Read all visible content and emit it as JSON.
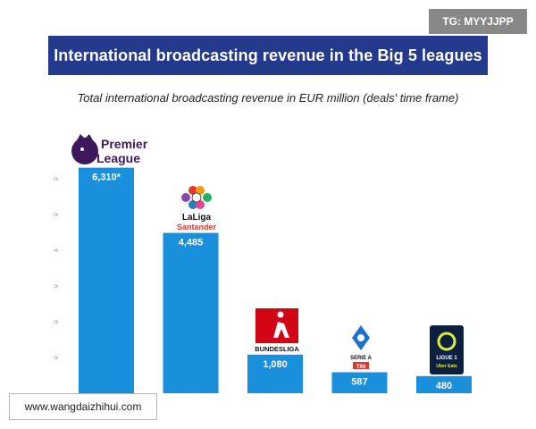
{
  "header": {
    "title": "International broadcasting revenue in the Big 5 leagues",
    "subtitle": "Total international broadcasting revenue in EUR million (deals' time frame)"
  },
  "watermarks": {
    "top_right": "TG: MYYJJPP",
    "bottom_left": "www.wangdaizhihui.com"
  },
  "colors": {
    "title_bg": "#233a8c",
    "bar": "#1a8fdc",
    "premier_league": "#3d185c",
    "laliga_red": "#e1392e",
    "bundesliga_red": "#d20515",
    "serie_a": "#1b73d1",
    "ligue1_bg": "#0c1f3f",
    "ligue1_accent": "#daf038"
  },
  "chart_data": {
    "type": "bar",
    "title": "International broadcasting revenue in the Big 5 leagues",
    "subtitle": "Total international broadcasting revenue in EUR million (deals' time frame)",
    "categories": [
      "Premier League",
      "LaLiga Santander",
      "Bundesliga",
      "Serie A",
      "Ligue 1 Uber Eats"
    ],
    "values": [
      6310,
      4485,
      1080,
      587,
      480
    ],
    "value_labels": [
      "6,310*",
      "4,485",
      "1,080",
      "587",
      "480"
    ],
    "ylim": [
      0,
      7000
    ],
    "y_ticks": [
      1000,
      2000,
      3000,
      4000,
      5000,
      6000
    ],
    "y_tick_labels": [
      "1k",
      "2k",
      "3k",
      "4k",
      "5k",
      "6k"
    ],
    "grid": false,
    "legend": "none",
    "logos": {
      "premier_league": [
        "Premier",
        "League"
      ],
      "laliga": [
        "LaLiga",
        "Santander"
      ],
      "bundesliga": [
        "BUNDESLIGA"
      ],
      "serie_a": [
        "SERIE A",
        "TIM"
      ],
      "ligue1": [
        "LIGUE 1",
        "Uber Eats"
      ]
    }
  }
}
